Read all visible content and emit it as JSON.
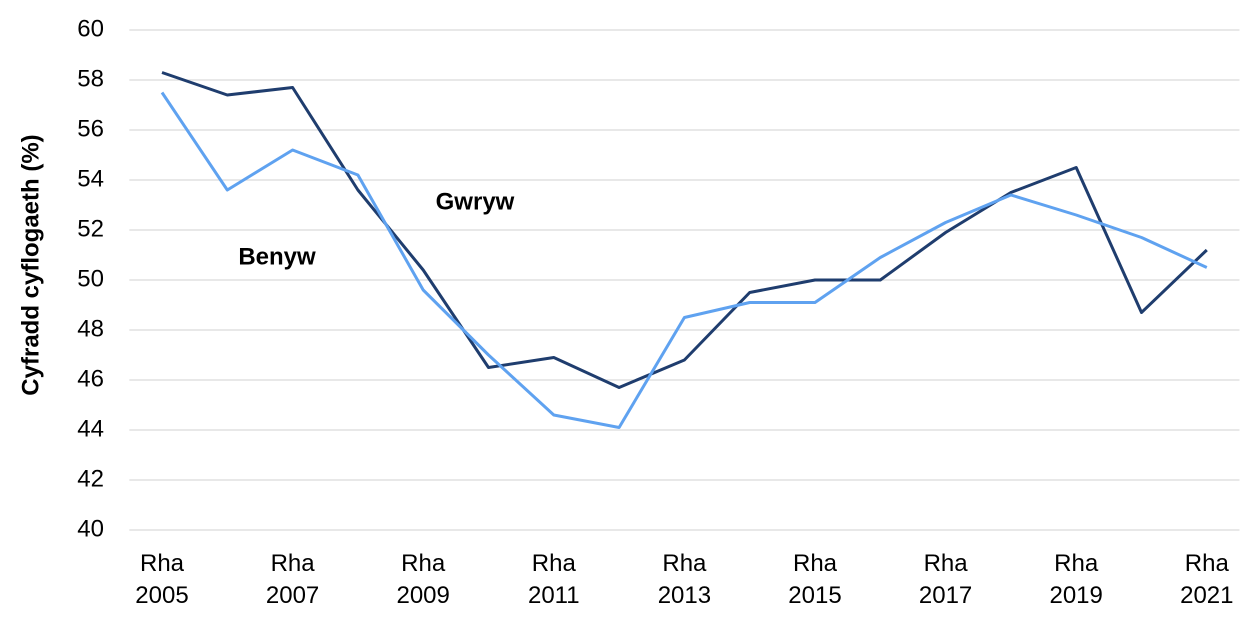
{
  "chart_data": {
    "type": "line",
    "y_label": "Cyfradd cyflogaeth (%)",
    "categories": [
      "Rha 2005",
      null,
      "Rha 2007",
      null,
      "Rha 2009",
      null,
      "Rha 2011",
      null,
      "Rha 2013",
      null,
      "Rha 2015",
      null,
      "Rha 2017",
      null,
      "Rha 2019",
      null,
      "Rha 2021"
    ],
    "series": [
      {
        "name": "Gwryw",
        "color": "#1f3d6e",
        "values": [
          58.3,
          57.4,
          57.7,
          53.6,
          50.4,
          46.5,
          46.9,
          45.7,
          46.8,
          49.5,
          50.0,
          50.0,
          51.9,
          53.5,
          54.5,
          48.7,
          51.2
        ]
      },
      {
        "name": "Benyw",
        "color": "#5fa2f0",
        "values": [
          57.5,
          53.6,
          55.2,
          54.2,
          49.6,
          47.0,
          44.6,
          44.1,
          48.5,
          49.1,
          49.1,
          50.9,
          52.3,
          53.4,
          52.6,
          51.7,
          50.5
        ]
      }
    ],
    "ylim": [
      40,
      60
    ],
    "yticks": [
      40,
      42,
      44,
      46,
      48,
      50,
      52,
      54,
      56,
      58,
      60
    ],
    "grid": true
  }
}
